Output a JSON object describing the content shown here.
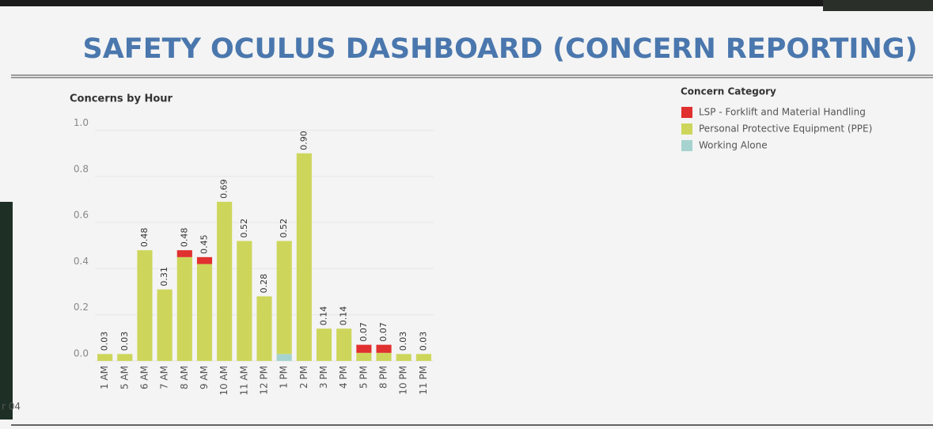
{
  "header": {
    "title": "SAFETY OCULUS DASHBOARD (CONCERN REPORTING)"
  },
  "footer_fragment": "r 04",
  "chart_data": {
    "type": "stacked-bar",
    "title": "Concerns by Hour",
    "legend_title": "Concern Category",
    "categories": [
      "1 AM",
      "5 AM",
      "6 AM",
      "7 AM",
      "8 AM",
      "9 AM",
      "10 AM",
      "11 AM",
      "12 PM",
      "1 PM",
      "2 PM",
      "3 PM",
      "4 PM",
      "5 PM",
      "8 PM",
      "10 PM",
      "11 PM"
    ],
    "series": [
      {
        "name": "Working Alone",
        "color": "#a6d3d0",
        "values": [
          null,
          null,
          null,
          null,
          null,
          null,
          null,
          null,
          null,
          0.03,
          null,
          null,
          null,
          null,
          null,
          null,
          null
        ]
      },
      {
        "name": "Personal Protective Equipment (PPE)",
        "color": "#cdd65b",
        "values": [
          0.03,
          0.03,
          0.48,
          0.31,
          0.45,
          0.42,
          0.69,
          0.52,
          0.28,
          0.49,
          0.9,
          0.14,
          0.14,
          0.035,
          0.035,
          0.03,
          0.03
        ]
      },
      {
        "name": "LSP - Forklift and Material Handling",
        "color": "#e0302f",
        "values": [
          null,
          null,
          null,
          null,
          0.03,
          0.03,
          null,
          null,
          null,
          null,
          null,
          null,
          null,
          0.035,
          0.035,
          null,
          null
        ]
      }
    ],
    "legend_order": [
      2,
      1,
      0
    ],
    "total_labels": [
      "0.03",
      "0.03",
      "0.48",
      "0.31",
      "0.48",
      "0.45",
      "0.69",
      "0.52",
      "0.28",
      "0.52",
      "0.90",
      "0.14",
      "0.14",
      "0.07",
      "0.07",
      "0.03",
      "0.03"
    ],
    "ylim": [
      0,
      1.05
    ],
    "yticks": [
      {
        "value": 0,
        "label": "0.0"
      },
      0.2,
      0.4,
      0.6,
      0.8,
      {
        "value": 1,
        "label": "1.0"
      }
    ],
    "grid": true
  }
}
